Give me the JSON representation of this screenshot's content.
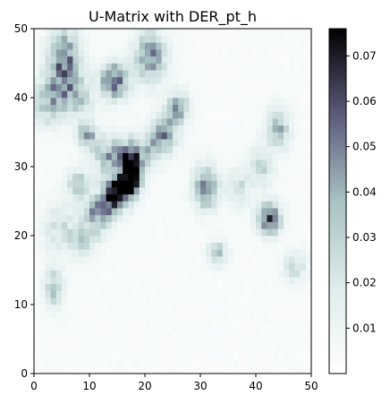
{
  "chart_data": {
    "type": "heatmap",
    "title": "U-Matrix with DER_pt_h",
    "xlabel": "",
    "ylabel": "",
    "grid_size": [
      50,
      50
    ],
    "xlim": [
      0,
      50
    ],
    "ylim": [
      0,
      50
    ],
    "x_ticks": [
      0,
      10,
      20,
      30,
      40,
      50
    ],
    "y_ticks": [
      0,
      10,
      20,
      30,
      40,
      50
    ],
    "x_tick_labels": [
      "0",
      "10",
      "20",
      "30",
      "40",
      "50"
    ],
    "y_tick_labels": [
      "0",
      "10",
      "20",
      "30",
      "40",
      "50"
    ],
    "colormap": "bone_r",
    "colorbar": {
      "min": 0.0,
      "max": 0.076,
      "ticks": [
        0.01,
        0.02,
        0.03,
        0.04,
        0.05,
        0.06,
        0.07
      ],
      "tick_labels": [
        "0.01",
        "0.02",
        "0.03",
        "0.04",
        "0.05",
        "0.06",
        "0.07"
      ]
    },
    "grid": false,
    "baseline_value": 0.004,
    "hotspots": [
      {
        "x": 17.5,
        "y": 29.5,
        "value": 0.074,
        "rx": 1.2,
        "ry": 2.5
      },
      {
        "x": 15.0,
        "y": 26.5,
        "value": 0.06,
        "rx": 1.8,
        "ry": 1.2
      },
      {
        "x": 14.5,
        "y": 42.5,
        "value": 0.055,
        "rx": 1.8,
        "ry": 1.8
      },
      {
        "x": 5.5,
        "y": 45.0,
        "value": 0.05,
        "rx": 2.0,
        "ry": 3.5
      },
      {
        "x": 21.0,
        "y": 46.0,
        "value": 0.045,
        "rx": 2.0,
        "ry": 2.5
      },
      {
        "x": 42.5,
        "y": 22.5,
        "value": 0.052,
        "rx": 1.6,
        "ry": 1.6
      },
      {
        "x": 31.0,
        "y": 27.0,
        "value": 0.045,
        "rx": 1.6,
        "ry": 2.2
      },
      {
        "x": 44.0,
        "y": 35.5,
        "value": 0.035,
        "rx": 1.5,
        "ry": 2.0
      },
      {
        "x": 9.5,
        "y": 34.5,
        "value": 0.04,
        "rx": 1.3,
        "ry": 1.3
      },
      {
        "x": 14.0,
        "y": 31.5,
        "value": 0.04,
        "rx": 2.2,
        "ry": 2.0
      },
      {
        "x": 8.0,
        "y": 27.5,
        "value": 0.03,
        "rx": 1.5,
        "ry": 1.5
      },
      {
        "x": 12.0,
        "y": 24.0,
        "value": 0.035,
        "rx": 2.0,
        "ry": 1.2
      },
      {
        "x": 3.5,
        "y": 12.5,
        "value": 0.03,
        "rx": 1.2,
        "ry": 2.0
      },
      {
        "x": 26.0,
        "y": 39.0,
        "value": 0.03,
        "rx": 1.5,
        "ry": 1.5
      },
      {
        "x": 33.0,
        "y": 17.5,
        "value": 0.03,
        "rx": 1.2,
        "ry": 1.2
      },
      {
        "x": 2.5,
        "y": 39.5,
        "value": 0.03,
        "rx": 2.0,
        "ry": 2.5
      },
      {
        "x": 5.0,
        "y": 21.0,
        "value": 0.02,
        "rx": 2.5,
        "ry": 2.5
      },
      {
        "x": 37.0,
        "y": 27.0,
        "value": 0.02,
        "rx": 1.5,
        "ry": 2.0
      },
      {
        "x": 41.0,
        "y": 30.0,
        "value": 0.025,
        "rx": 1.5,
        "ry": 2.0
      },
      {
        "x": 47.0,
        "y": 15.5,
        "value": 0.022,
        "rx": 1.5,
        "ry": 1.5
      },
      {
        "x": 23.0,
        "y": 34.0,
        "value": 0.02,
        "rx": 2.0,
        "ry": 2.0
      },
      {
        "x": 8.0,
        "y": 40.0,
        "value": 0.025,
        "rx": 2.0,
        "ry": 2.0
      }
    ],
    "ridge_band": {
      "from": [
        9,
        19
      ],
      "to": [
        25,
        37
      ],
      "width": 3.0,
      "value": 0.025
    }
  }
}
